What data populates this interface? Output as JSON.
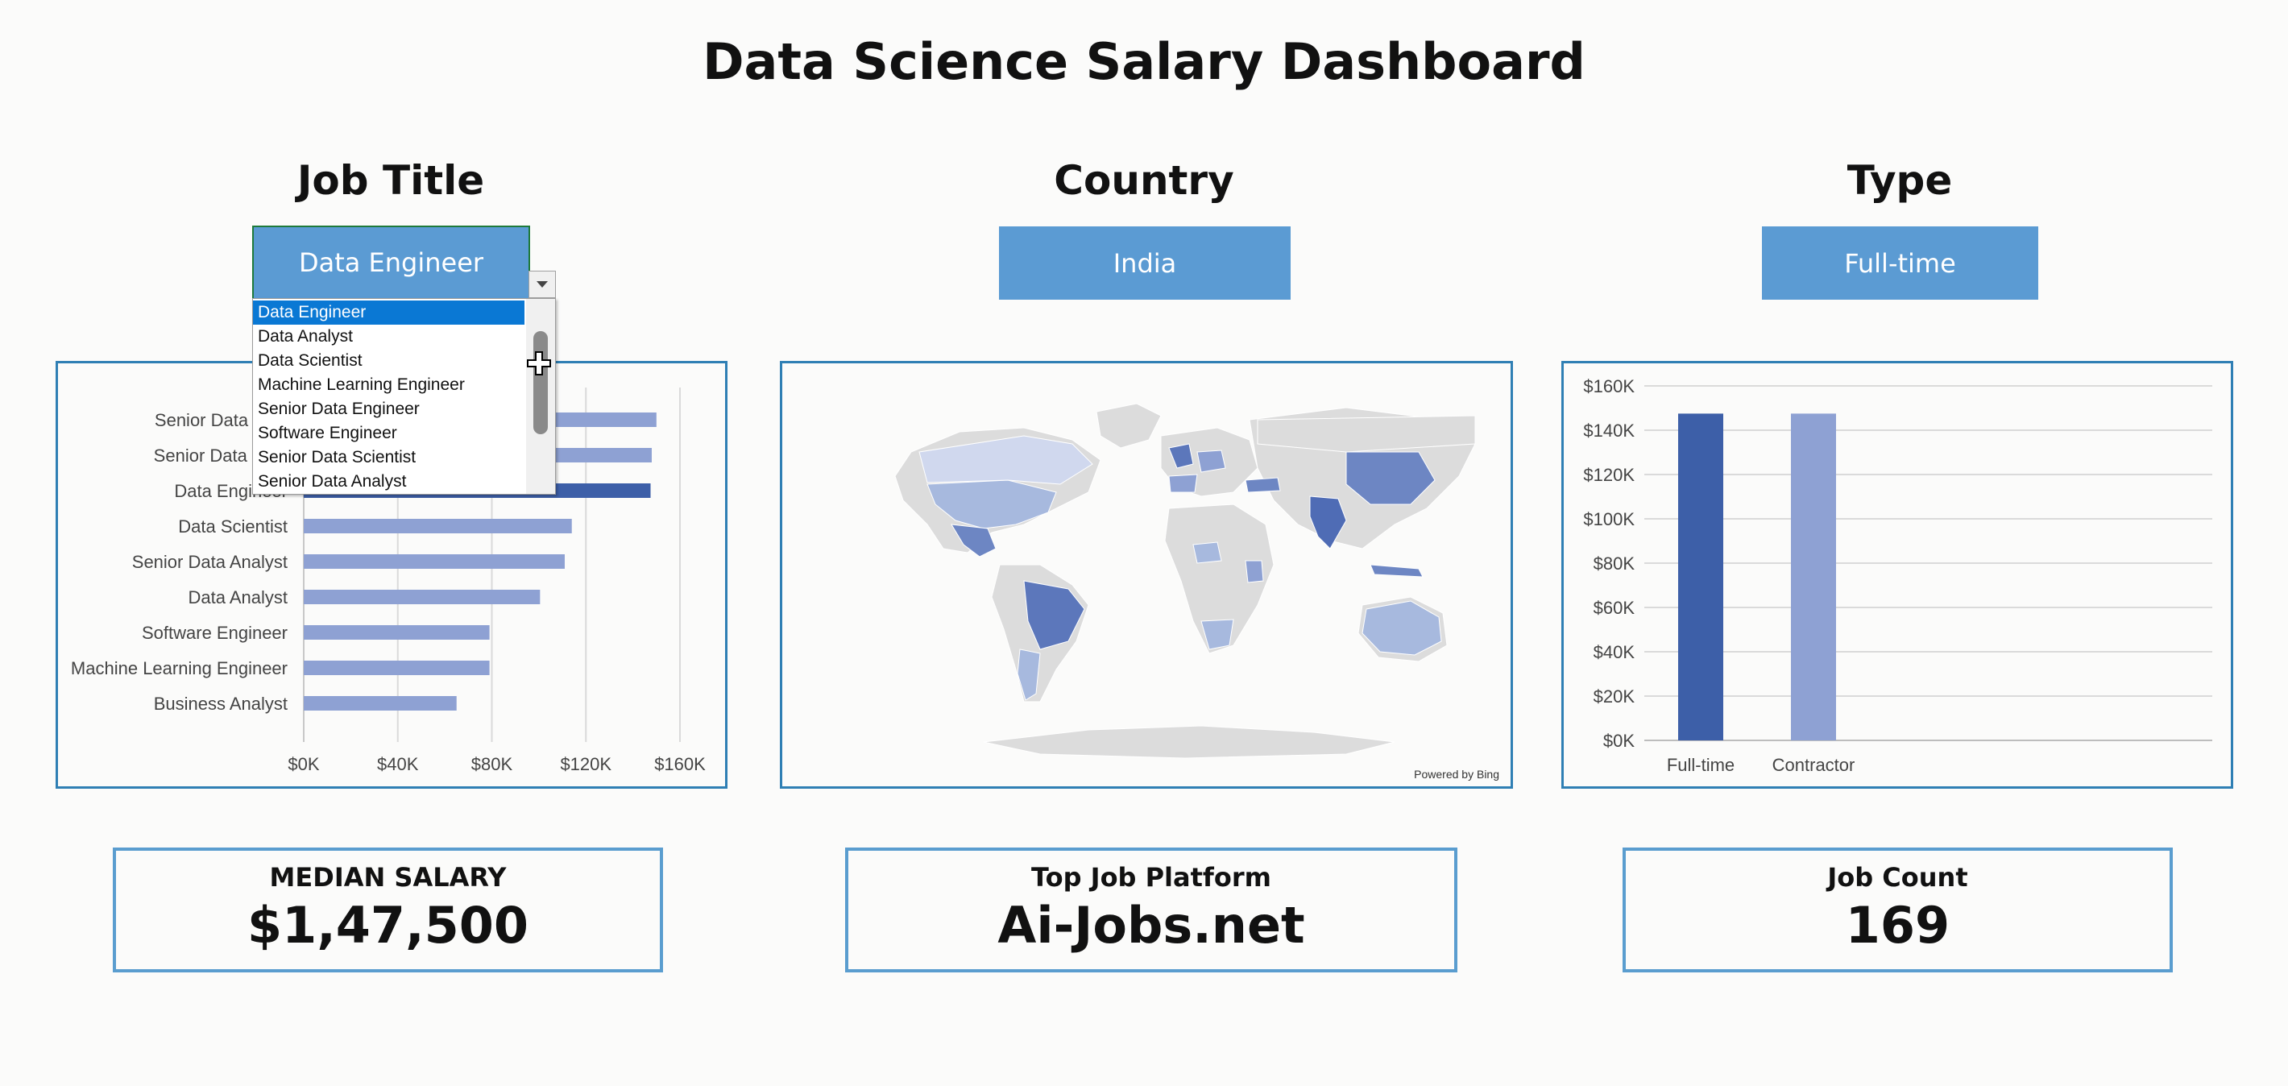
{
  "title": "Data Science Salary Dashboard",
  "filters": {
    "job_title": {
      "label": "Job Title",
      "value": "Data Engineer"
    },
    "country": {
      "label": "Country",
      "value": "India"
    },
    "type": {
      "label": "Type",
      "value": "Full-time"
    }
  },
  "dropdown": {
    "options": [
      "Data Engineer",
      "Data Analyst",
      "Data Scientist",
      "Machine Learning Engineer",
      "Senior Data Engineer",
      "Software Engineer",
      "Senior Data Scientist",
      "Senior Data Analyst"
    ],
    "selected": "Data Engineer"
  },
  "map": {
    "attribution": "Powered by Bing"
  },
  "kpis": {
    "median_salary": {
      "label": "MEDIAN SALARY",
      "value": "$1,47,500"
    },
    "top_platform": {
      "label": "Top Job Platform",
      "value": "Ai-Jobs.net"
    },
    "job_count": {
      "label": "Job Count",
      "value": "169"
    }
  },
  "colors": {
    "accent": "#5b9bd3",
    "bar_highlight": "#3d5fa8",
    "bar": "#8ea1d3",
    "panel_border": "#2f7fb4"
  },
  "chart_data": [
    {
      "type": "bar",
      "orientation": "horizontal",
      "categories": [
        "Senior Data Scientist",
        "Senior Data Engineer",
        "Data Engineer",
        "Data Scientist",
        "Senior Data Analyst",
        "Data Analyst",
        "Software Engineer",
        "Machine Learning Engineer",
        "Business Analyst"
      ],
      "category_labels_visible": [
        "Senior Data Scie",
        "Senior Data Engi",
        "Data Engineer",
        "Data Scientist",
        "Senior Data Analyst",
        "Data Analyst",
        "Software Engineer",
        "Machine Learning Engineer",
        "Business Analyst"
      ],
      "values": [
        150000,
        148000,
        147500,
        114000,
        111000,
        100500,
        79000,
        79000,
        65000
      ],
      "highlight": "Data Engineer",
      "xlim": [
        0,
        160000
      ],
      "x_ticks": [
        0,
        40000,
        80000,
        120000,
        160000
      ],
      "x_tick_labels": [
        "$0K",
        "$40K",
        "$80K",
        "$120K",
        "$160K"
      ],
      "grid": true
    },
    {
      "type": "bar",
      "categories": [
        "Full-time",
        "Contractor"
      ],
      "values": [
        147500,
        147500
      ],
      "highlight": "Full-time",
      "ylim": [
        0,
        160000
      ],
      "y_ticks": [
        0,
        20000,
        40000,
        60000,
        80000,
        100000,
        120000,
        140000,
        160000
      ],
      "y_tick_labels": [
        "$0K",
        "$20K",
        "$40K",
        "$60K",
        "$80K",
        "$100K",
        "$120K",
        "$140K",
        "$160K"
      ],
      "grid": true
    }
  ]
}
